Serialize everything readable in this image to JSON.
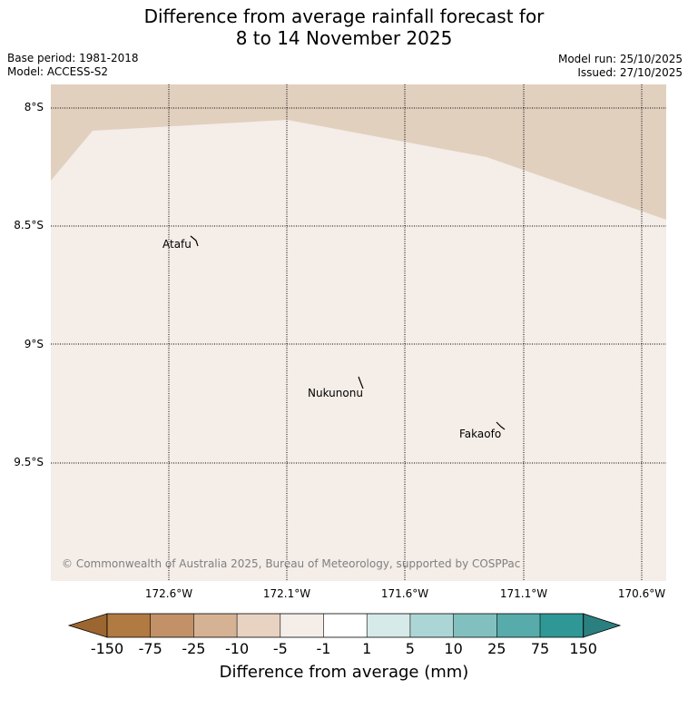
{
  "title": {
    "line1": "Difference from average rainfall forecast for",
    "line2": "8 to 14 November 2025"
  },
  "meta": {
    "base_period": "Base period: 1981-2018",
    "model": "Model: ACCESS-S2",
    "model_run": "Model run: 25/10/2025",
    "issued": "Issued: 27/10/2025"
  },
  "map": {
    "latitude_labels": [
      "8°S",
      "8.5°S",
      "9°S",
      "9.5°S"
    ],
    "longitude_labels": [
      "172.6°W",
      "172.1°W",
      "171.6°W",
      "171.1°W",
      "170.6°W"
    ],
    "places": [
      "Atafu",
      "Nukunonu",
      "Fakaofo"
    ],
    "credit": "© Commonwealth of Australia 2025, Bureau of Meteorology, supported by COSPPac",
    "colors": {
      "light_region": "#f4ede8",
      "dark_region": "#e2d0bf",
      "gridline": "#000000"
    }
  },
  "colorbar": {
    "tick_labels": [
      "-150",
      "-75",
      "-25",
      "-10",
      "-5",
      "-1",
      "1",
      "5",
      "10",
      "25",
      "75",
      "150"
    ],
    "colors": [
      "#9c6630",
      "#b07a42",
      "#c29168",
      "#d5b294",
      "#e8d3c2",
      "#f5eee8",
      "#ffffff",
      "#d6ebe9",
      "#acd6d5",
      "#82c0bf",
      "#57abab",
      "#2f9896",
      "#2b807f"
    ],
    "title": "Difference from average (mm)"
  }
}
